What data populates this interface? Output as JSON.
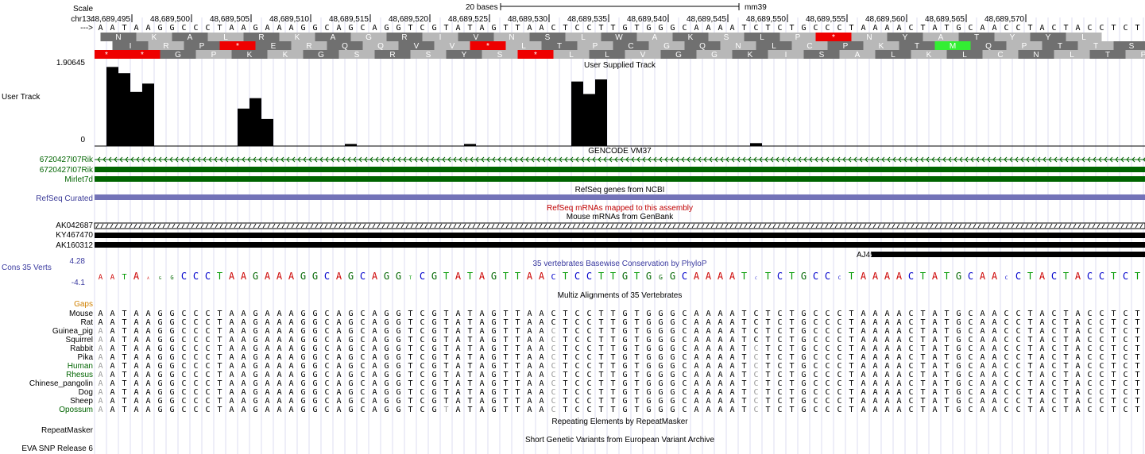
{
  "colors": {
    "gene_green": "#006400",
    "refseq_blue": "#7373b8",
    "refseq_label": "#3b3b98",
    "mrna_red": "#c00000",
    "cons_label": "#3b3ba0",
    "gaps_orange": "#d08000",
    "stop_red": "#ee0000",
    "met_green": "#33ee33",
    "aa_dark": "#707070",
    "aa_light": "#b8b8b8",
    "base_A": "#cc0000",
    "base_C": "#0000cc",
    "base_G": "#006600",
    "base_T": "#009900"
  },
  "ruler": {
    "scale_label": "Scale",
    "chrom_label": "chr13:",
    "strand_label": "--->",
    "scalebar_label": "20 bases",
    "assembly": "mm39",
    "positions": [
      "48,689,495",
      "48,689,500",
      "48,689,505",
      "48,689,510",
      "48,689,515",
      "48,689,520",
      "48,689,525",
      "48,689,530",
      "48,689,535",
      "48,689,540",
      "48,689,545",
      "48,689,550",
      "48,689,555",
      "48,689,560",
      "48,689,565",
      "48,689,570"
    ]
  },
  "sequence": "AATAAGGCCCTAAGAAAGGCAGCAGGTCGTATAGTTAACTCCTTGTGGGCAAAATCTCTGCCCTAAAACTATGCAACCTACTACCTCT",
  "frames": [
    {
      "start": 0.5,
      "aa": [
        "N",
        "K",
        "A",
        "L",
        "R",
        "K",
        "A",
        "G",
        "R",
        "I",
        "V",
        "N",
        "S",
        "L",
        "W",
        "A",
        "K",
        "S",
        "L",
        "P",
        "*",
        "N",
        "Y",
        "A",
        "T",
        "Y",
        "Y",
        "L"
      ]
    },
    {
      "start": 1.5,
      "aa": [
        "I",
        "R",
        "P",
        "*",
        "E",
        "R",
        "Q",
        "Q",
        "V",
        "V",
        "*",
        "L",
        "T",
        "P",
        "C",
        "G",
        "Q",
        "N",
        "L",
        "C",
        "P",
        "K",
        "T",
        "M",
        "Q",
        "P",
        "T",
        "T",
        "S"
      ]
    },
    {
      "start": -0.5,
      "aa": [
        "*",
        "*",
        "G",
        "P",
        "K",
        "K",
        "G",
        "S",
        "R",
        "S",
        "Y",
        "S",
        "*",
        "L",
        "L",
        "V",
        "G",
        "G",
        "K",
        "I",
        "S",
        "A",
        "L",
        "K",
        "L",
        "C",
        "N",
        "L",
        "T",
        "P",
        "S"
      ]
    }
  ],
  "user_track": {
    "title": "User Supplied Track",
    "label": "User Track",
    "max": "1.90645",
    "min": "0",
    "values": [
      0,
      1.9,
      1.75,
      1.3,
      1.5,
      0,
      0,
      0,
      0,
      0,
      0,
      0,
      0.9,
      1.15,
      0.65,
      0,
      0,
      0,
      0,
      0,
      0,
      0.05,
      0,
      0,
      0,
      0,
      0,
      0,
      0,
      0,
      0,
      0.05,
      0,
      0,
      0,
      0,
      0,
      0,
      0,
      0,
      1.55,
      1.25,
      1.6,
      0,
      0,
      0,
      0,
      0,
      0,
      0,
      0,
      0,
      0,
      0,
      0,
      0.07,
      0,
      0,
      0,
      0,
      0,
      0,
      0,
      0,
      0,
      0,
      0,
      0,
      0,
      0,
      0,
      0,
      0,
      0,
      0,
      0,
      0,
      0,
      0,
      0,
      0,
      0,
      0,
      0,
      0,
      0,
      0,
      0,
      0,
      0
    ]
  },
  "gencode": {
    "title": "GENCODE VM37",
    "items": [
      "6720427I07Rik",
      "6720427I07Rik",
      "Mirlet7d"
    ]
  },
  "refseq": {
    "title": "RefSeq genes from NCBI",
    "label": "RefSeq Curated"
  },
  "refseq_mrna": {
    "title": "RefSeq mRNAs mapped to this assembly"
  },
  "mrna": {
    "title": "Mouse mRNAs from GenBank",
    "items": [
      "AK042687",
      "KY467470",
      "AK160312",
      "AJ459695"
    ]
  },
  "conservation": {
    "title": "35 vertebrates Basewise Conservation by PhyloP",
    "label": "Cons 35 Verts",
    "max": "4.28",
    "min": "-4.1"
  },
  "multiz": {
    "title": "Multiz Alignments of 35 Vertebrates",
    "gaps_label": "Gaps",
    "species": [
      "Mouse",
      "Rat",
      "Guinea_pig",
      "Squirrel",
      "Rabbit",
      "Pika",
      "Human",
      "Rhesus",
      "Chinese_pangolin",
      "Dog",
      "Sheep",
      "Opossum"
    ]
  },
  "repeatmasker": {
    "title": "Repeating Elements by RepeatMasker",
    "label": "RepeatMasker"
  },
  "eva": {
    "title": "Short Genetic Variants from European Variant Archive",
    "label": "EVA SNP Release 6"
  }
}
